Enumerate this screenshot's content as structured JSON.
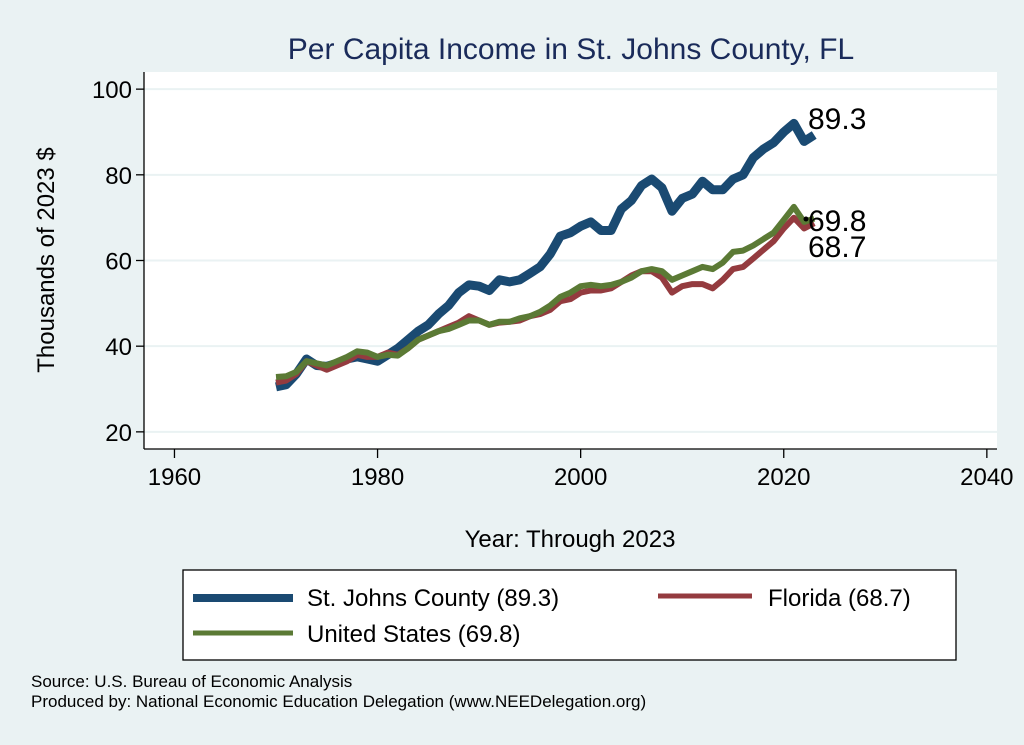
{
  "chart_data": {
    "type": "line",
    "title": "Per Capita Income in St. Johns County, FL",
    "xlabel": "Year: Through 2023",
    "ylabel": "Thousands of 2023 $",
    "xlim": [
      1957,
      2041
    ],
    "ylim": [
      16,
      104
    ],
    "x_ticks": [
      1960,
      1980,
      2000,
      2020,
      2040
    ],
    "y_ticks": [
      20,
      40,
      60,
      80,
      100
    ],
    "grid": true,
    "legend_position": "bottom",
    "x": [
      1970,
      1971,
      1972,
      1973,
      1974,
      1975,
      1976,
      1977,
      1978,
      1979,
      1980,
      1981,
      1982,
      1983,
      1984,
      1985,
      1986,
      1987,
      1988,
      1989,
      1990,
      1991,
      1992,
      1993,
      1994,
      1995,
      1996,
      1997,
      1998,
      1999,
      2000,
      2001,
      2002,
      2003,
      2004,
      2005,
      2006,
      2007,
      2008,
      2009,
      2010,
      2011,
      2012,
      2013,
      2014,
      2015,
      2016,
      2017,
      2018,
      2019,
      2020,
      2021,
      2022,
      2023
    ],
    "series": [
      {
        "name": "St. Johns County",
        "legend_label": "St. Johns County (89.3)",
        "end_label": "89.3",
        "color": "#1a4a72",
        "values": [
          30.5,
          31.0,
          33.5,
          37.0,
          35.5,
          35.3,
          36.0,
          37.0,
          37.5,
          37.0,
          36.5,
          38.0,
          39.5,
          41.5,
          43.5,
          45.0,
          47.5,
          49.5,
          52.5,
          54.3,
          54.0,
          53.0,
          55.5,
          55.0,
          55.5,
          57.0,
          58.5,
          61.5,
          65.7,
          66.5,
          68.0,
          69.0,
          67.0,
          67.0,
          72.0,
          74.0,
          77.5,
          79.0,
          77.0,
          71.5,
          74.5,
          75.5,
          78.5,
          76.5,
          76.5,
          79.0,
          80.0,
          84.0,
          86.0,
          87.5,
          90.0,
          92.0,
          87.8,
          89.3
        ]
      },
      {
        "name": "Florida",
        "legend_label": "Florida (68.7)",
        "end_label": "68.7",
        "color": "#943b3f",
        "values": [
          31.5,
          32.0,
          33.5,
          36.5,
          35.5,
          34.5,
          35.5,
          36.5,
          38.0,
          37.5,
          37.5,
          38.5,
          38.0,
          39.5,
          41.5,
          42.5,
          43.5,
          44.5,
          45.5,
          47.0,
          46.0,
          45.0,
          45.5,
          45.7,
          46.0,
          47.0,
          47.5,
          48.5,
          50.5,
          51.0,
          52.5,
          53.0,
          53.0,
          53.5,
          55.0,
          56.5,
          57.5,
          57.5,
          56.0,
          52.5,
          54.0,
          54.5,
          54.5,
          53.5,
          55.5,
          58.0,
          58.5,
          60.5,
          62.5,
          64.5,
          67.5,
          70.0,
          67.5,
          68.7
        ]
      },
      {
        "name": "United States",
        "legend_label": "United States (69.8)",
        "end_label": "69.8",
        "color": "#5b7a35",
        "values": [
          32.8,
          33.0,
          34.0,
          36.5,
          36.0,
          35.5,
          36.5,
          37.5,
          38.8,
          38.5,
          37.5,
          38.0,
          37.8,
          39.5,
          41.5,
          42.5,
          43.5,
          44.0,
          45.0,
          46.0,
          46.0,
          45.0,
          45.7,
          45.7,
          46.5,
          47.0,
          48.0,
          49.5,
          51.5,
          52.5,
          54.0,
          54.3,
          54.0,
          54.3,
          55.0,
          56.0,
          57.5,
          58.0,
          57.5,
          55.5,
          56.5,
          57.5,
          58.5,
          58.0,
          59.5,
          62.0,
          62.3,
          63.5,
          65.0,
          66.5,
          69.5,
          72.5,
          69.0,
          69.8
        ]
      }
    ]
  },
  "footer": {
    "source": "Source: U.S. Bureau of Economic Analysis",
    "produced_by": "Produced by: National Economic Education Delegation (www.NEEDelegation.org)"
  }
}
